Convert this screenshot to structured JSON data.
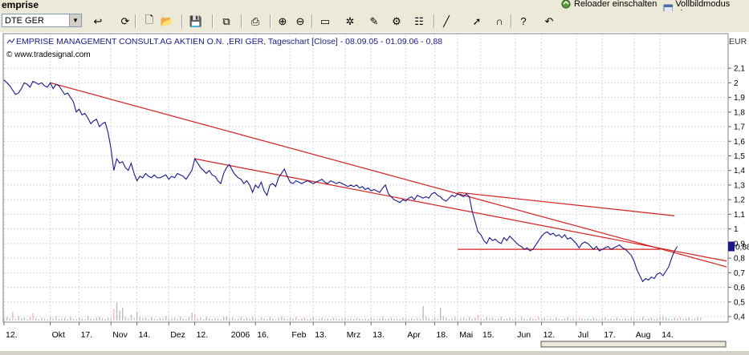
{
  "app": {
    "title": "emprise",
    "reloader": "Reloader einschalten",
    "fullscreen": "Vollbildmodus einsc"
  },
  "toolbar": {
    "symbol_value": "DTE GER",
    "icons": [
      "refresh-arrow-icon",
      "chart-refresh-icon",
      "new-document-icon",
      "open-folder-icon",
      "save-icon",
      "copy-icon",
      "print-icon",
      "zoom-in-icon",
      "zoom-out-icon",
      "window-icon",
      "indicator-icon",
      "drawing-tool-icon",
      "settings-icon",
      "properties-icon",
      "line-tool-icon",
      "cursor-icon",
      "magnet-icon",
      "help-icon",
      "undo-icon"
    ]
  },
  "chart_data": {
    "type": "line",
    "title": "EMPRISE MANAGEMENT CONSULT.AG AKTIEN O.N. ,ERI GER, Tageschart [Close] - 08.09.05 - 01.09.06 - 0,88",
    "source": "© www.tradesignal.com",
    "currency": "EUR",
    "last_value_label": "0,88",
    "ylim": [
      0.4,
      2.15
    ],
    "yticks": [
      "2,1",
      "2",
      "1,9",
      "1,8",
      "1,7",
      "1,6",
      "1,5",
      "1,4",
      "1,3",
      "1,2",
      "1,1",
      "1",
      "0,9",
      "0,8",
      "0,7",
      "0,6",
      "0,5",
      "0,4"
    ],
    "xticks": [
      "12.",
      "Okt",
      "17.",
      "Nov",
      "14.",
      "Dez",
      "12.",
      "2006",
      "16.",
      "Feb",
      "13.",
      "Mrz",
      "13.",
      "Apr",
      "18.",
      "Mai",
      "15.",
      "Jun",
      "12.",
      "Jul",
      "17.",
      "Aug",
      "14."
    ],
    "xlim": [
      0,
      250
    ],
    "xtick_index": [
      0,
      16,
      26,
      37,
      46,
      57,
      66,
      78,
      87,
      99,
      107,
      118,
      127,
      139,
      149,
      157,
      165,
      177,
      186,
      198,
      207,
      218,
      227
    ],
    "series": [
      {
        "color": "#1a1a8c",
        "values": [
          2.02,
          2.0,
          1.98,
          1.95,
          1.92,
          1.93,
          1.96,
          2.0,
          1.99,
          1.97,
          2.01,
          2.0,
          1.99,
          2.0,
          1.98,
          1.97,
          2.0,
          1.96,
          1.99,
          1.98,
          1.95,
          1.92,
          1.93,
          1.9,
          1.87,
          1.8,
          1.82,
          1.78,
          1.79,
          1.76,
          1.72,
          1.74,
          1.75,
          1.7,
          1.72,
          1.73,
          1.66,
          1.55,
          1.4,
          1.48,
          1.45,
          1.46,
          1.42,
          1.4,
          1.45,
          1.38,
          1.33,
          1.36,
          1.35,
          1.38,
          1.36,
          1.35,
          1.37,
          1.35,
          1.35,
          1.36,
          1.37,
          1.34,
          1.36,
          1.35,
          1.38,
          1.37,
          1.36,
          1.34,
          1.37,
          1.4,
          1.48,
          1.45,
          1.42,
          1.4,
          1.38,
          1.4,
          1.37,
          1.36,
          1.33,
          1.31,
          1.38,
          1.42,
          1.44,
          1.4,
          1.37,
          1.35,
          1.34,
          1.31,
          1.33,
          1.3,
          1.25,
          1.3,
          1.28,
          1.32,
          1.26,
          1.23,
          1.3,
          1.31,
          1.29,
          1.35,
          1.38,
          1.41,
          1.36,
          1.32,
          1.31,
          1.33,
          1.32,
          1.31,
          1.32,
          1.33,
          1.32,
          1.31,
          1.32,
          1.33,
          1.34,
          1.32,
          1.31,
          1.33,
          1.32,
          1.31,
          1.32,
          1.31,
          1.3,
          1.29,
          1.3,
          1.29,
          1.3,
          1.28,
          1.29,
          1.27,
          1.28,
          1.26,
          1.27,
          1.26,
          1.25,
          1.28,
          1.3,
          1.24,
          1.22,
          1.2,
          1.19,
          1.18,
          1.2,
          1.19,
          1.21,
          1.22,
          1.2,
          1.23,
          1.22,
          1.21,
          1.22,
          1.21,
          1.24,
          1.25,
          1.23,
          1.22,
          1.2,
          1.19,
          1.21,
          1.23,
          1.22,
          1.24,
          1.23,
          1.22,
          1.24,
          1.22,
          1.12,
          1.05,
          0.98,
          0.96,
          0.92,
          0.9,
          0.94,
          0.92,
          0.93,
          0.91,
          0.9,
          0.94,
          0.92,
          0.95,
          0.93,
          0.91,
          0.89,
          0.88,
          0.86,
          0.87,
          0.85,
          0.86,
          0.89,
          0.92,
          0.95,
          0.97,
          0.98,
          0.96,
          0.97,
          0.95,
          0.96,
          0.94,
          0.96,
          0.93,
          0.94,
          0.92,
          0.9,
          0.87,
          0.9,
          0.91,
          0.9,
          0.88,
          0.86,
          0.88,
          0.85,
          0.86,
          0.87,
          0.88,
          0.86,
          0.87,
          0.88,
          0.89,
          0.87,
          0.86,
          0.84,
          0.82,
          0.78,
          0.72,
          0.68,
          0.64,
          0.66,
          0.65,
          0.67,
          0.66,
          0.69,
          0.7,
          0.68,
          0.71,
          0.74,
          0.8,
          0.85,
          0.88
        ]
      }
    ],
    "volume": [
      0.02,
      0.05,
      0.03,
      0.12,
      0.02,
      0.06,
      0.03,
      0.04,
      0.02,
      0.05,
      0.1,
      0.03,
      0.02,
      0.04,
      0.03,
      0.02,
      0.05,
      0.03,
      0.06,
      0.02,
      0.03,
      0.04,
      0.02,
      0.05,
      0.03,
      0.02,
      0.04,
      0.03,
      0.02,
      0.06,
      0.03,
      0.02,
      0.04,
      0.05,
      0.03,
      0.02,
      0.04,
      0.03,
      0.16,
      0.25,
      0.14,
      0.18,
      0.05,
      0.03,
      0.08,
      0.04,
      0.12,
      0.05,
      0.03,
      0.04,
      0.02,
      0.05,
      0.03,
      0.02,
      0.04,
      0.03,
      0.06,
      0.02,
      0.03,
      0.04,
      0.02,
      0.05,
      0.03,
      0.02,
      0.05,
      0.11,
      0.09,
      0.03,
      0.04,
      0.02,
      0.05,
      0.03,
      0.02,
      0.04,
      0.03,
      0.02,
      0.05,
      0.06,
      0.03,
      0.04,
      0.02,
      0.03,
      0.05,
      0.02,
      0.04,
      0.03,
      0.05,
      0.03,
      0.02,
      0.04,
      0.03,
      0.02,
      0.05,
      0.03,
      0.02,
      0.04,
      0.06,
      0.03,
      0.02,
      0.04,
      0.03,
      0.05,
      0.02,
      0.03,
      0.04,
      0.02,
      0.03,
      0.05,
      0.02,
      0.03,
      0.04,
      0.02,
      0.03,
      0.02,
      0.04,
      0.03,
      0.02,
      0.03,
      0.04,
      0.02,
      0.03,
      0.02,
      0.04,
      0.03,
      0.02,
      0.03,
      0.02,
      0.04,
      0.03,
      0.02,
      0.03,
      0.05,
      0.02,
      0.03,
      0.04,
      0.02,
      0.03,
      0.02,
      0.04,
      0.03,
      0.02,
      0.03,
      0.02,
      0.04,
      0.03,
      0.2,
      0.05,
      0.03,
      0.02,
      0.04,
      0.03,
      0.18,
      0.06,
      0.04,
      0.02,
      0.03,
      0.05,
      0.02,
      0.03,
      0.04,
      0.02,
      0.05,
      0.03,
      0.04,
      0.08,
      0.03,
      0.02,
      0.05,
      0.03,
      0.04,
      0.02,
      0.03,
      0.05,
      0.02,
      0.03,
      0.04,
      0.02,
      0.03,
      0.02,
      0.05,
      0.03,
      0.02,
      0.04,
      0.03,
      0.02,
      0.05,
      0.03,
      0.04,
      0.02,
      0.03,
      0.02,
      0.04,
      0.03,
      0.02,
      0.03,
      0.05,
      0.02,
      0.03,
      0.02,
      0.04,
      0.03,
      0.02,
      0.03,
      0.02,
      0.04,
      0.03,
      0.02,
      0.03,
      0.04,
      0.02,
      0.03,
      0.02,
      0.04,
      0.03,
      0.02,
      0.03,
      0.02,
      0.04,
      0.03,
      0.02,
      0.03,
      0.05,
      0.02,
      0.03,
      0.04,
      0.02,
      0.03,
      0.05,
      0.06,
      0.04,
      0.03,
      0.02,
      0.04,
      0.03,
      0.05,
      0.02,
      0.03,
      0.04,
      0.02,
      0.03,
      0.05,
      0.04
    ],
    "trendlines": [
      {
        "x0": 16,
        "y0": 2.0,
        "x1": 250,
        "y1": 0.74
      },
      {
        "x0": 66,
        "y0": 1.48,
        "x1": 250,
        "y1": 0.78
      },
      {
        "x0": 157,
        "y0": 1.25,
        "x1": 232,
        "y1": 1.09
      },
      {
        "x0": 157,
        "y0": 0.86,
        "x1": 227,
        "y1": 0.86
      }
    ],
    "grid": true
  }
}
